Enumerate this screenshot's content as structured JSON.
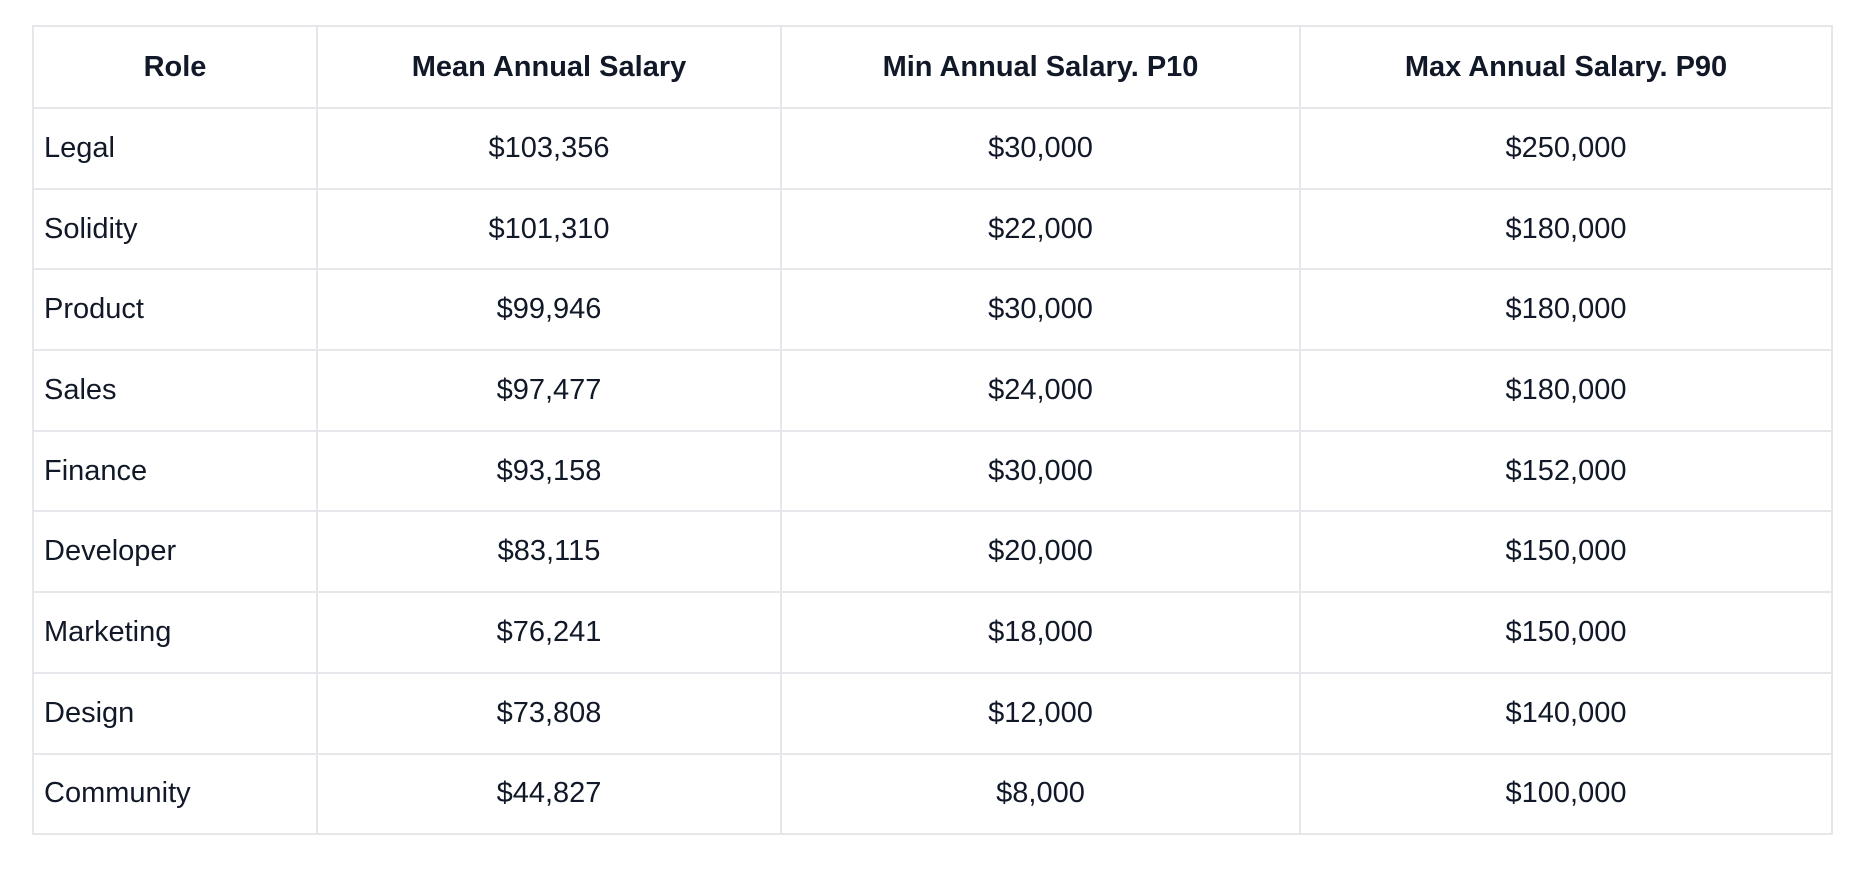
{
  "table": {
    "columns": [
      "Role",
      "Mean Annual Salary",
      "Min Annual Salary. P10",
      "Max Annual Salary. P90"
    ],
    "rows": [
      {
        "role": "Legal",
        "mean": "$103,356",
        "min": "$30,000",
        "max": "$250,000"
      },
      {
        "role": "Solidity",
        "mean": "$101,310",
        "min": "$22,000",
        "max": "$180,000"
      },
      {
        "role": "Product",
        "mean": "$99,946",
        "min": "$30,000",
        "max": "$180,000"
      },
      {
        "role": "Sales",
        "mean": "$97,477",
        "min": "$24,000",
        "max": "$180,000"
      },
      {
        "role": "Finance",
        "mean": "$93,158",
        "min": "$30,000",
        "max": "$152,000"
      },
      {
        "role": "Developer",
        "mean": "$83,115",
        "min": "$20,000",
        "max": "$150,000"
      },
      {
        "role": "Marketing",
        "mean": "$76,241",
        "min": "$18,000",
        "max": "$150,000"
      },
      {
        "role": "Design",
        "mean": "$73,808",
        "min": "$12,000",
        "max": "$140,000"
      },
      {
        "role": "Community",
        "mean": "$44,827",
        "min": "$8,000",
        "max": "$100,000"
      }
    ],
    "colors": {
      "text": "#111827",
      "border": "#e6e7eb",
      "background": "#ffffff"
    }
  },
  "chart_data": {
    "type": "table",
    "title": "",
    "columns": [
      "Role",
      "Mean Annual Salary",
      "Min Annual Salary. P10",
      "Max Annual Salary. P90"
    ],
    "series": [
      {
        "name": "Mean Annual Salary",
        "values": [
          103356,
          101310,
          99946,
          97477,
          93158,
          83115,
          76241,
          73808,
          44827
        ]
      },
      {
        "name": "Min Annual Salary. P10",
        "values": [
          30000,
          22000,
          30000,
          24000,
          30000,
          20000,
          18000,
          12000,
          8000
        ]
      },
      {
        "name": "Max Annual Salary. P90",
        "values": [
          250000,
          180000,
          180000,
          180000,
          152000,
          150000,
          150000,
          140000,
          100000
        ]
      }
    ],
    "categories": [
      "Legal",
      "Solidity",
      "Product",
      "Sales",
      "Finance",
      "Developer",
      "Marketing",
      "Design",
      "Community"
    ]
  }
}
